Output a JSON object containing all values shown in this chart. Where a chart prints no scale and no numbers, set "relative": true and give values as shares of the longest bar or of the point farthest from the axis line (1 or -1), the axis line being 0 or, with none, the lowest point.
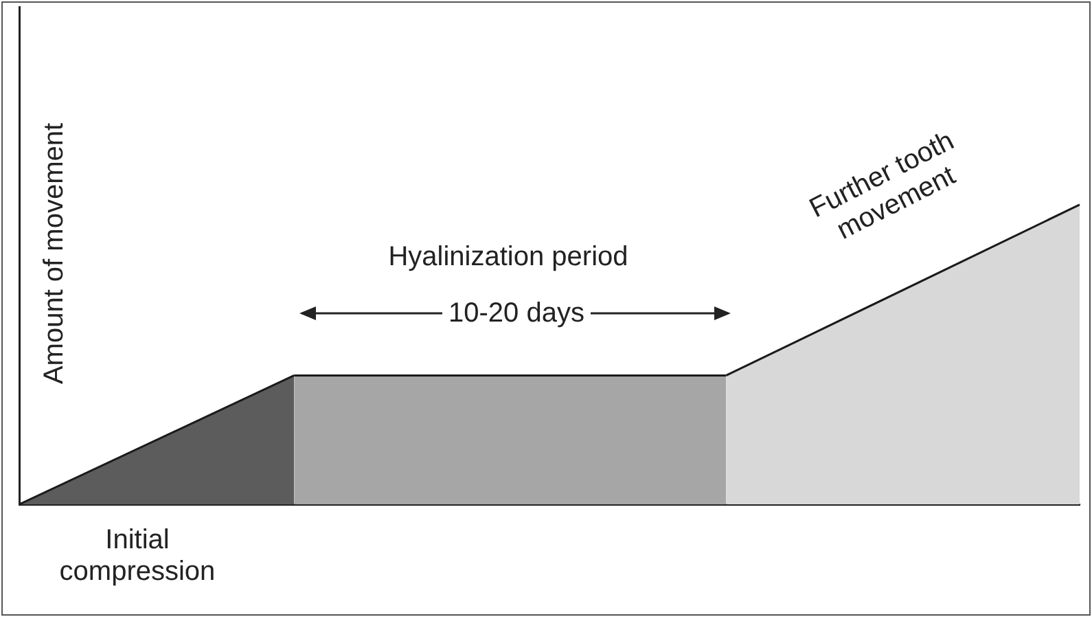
{
  "chart_data": {
    "type": "area",
    "relative": true,
    "ylabel": "Amount of movement",
    "legend": false,
    "grid": false,
    "categories": [
      null,
      null,
      null,
      null,
      null,
      null,
      null,
      null,
      null,
      null,
      null,
      null,
      null,
      null,
      null,
      null,
      null,
      null,
      null,
      null,
      null,
      null,
      null,
      null,
      null,
      null,
      null,
      null
    ],
    "series": [
      {
        "color": "#5c5c5c",
        "values": [
          0,
          null,
          null,
          null,
          null,
          null,
          null,
          0.43,
          null,
          null,
          null,
          null,
          null,
          null,
          null,
          null,
          null,
          null,
          null,
          null,
          null,
          null,
          null,
          null,
          null,
          null,
          null,
          null
        ]
      },
      {
        "color": "#a6a6a6",
        "values": [
          null,
          null,
          null,
          null,
          null,
          null,
          null,
          0.43,
          null,
          null,
          null,
          null,
          null,
          null,
          null,
          null,
          null,
          null,
          0.43,
          null,
          null,
          null,
          null,
          null,
          null,
          null,
          null,
          null
        ]
      },
      {
        "color": "#d8d8d8",
        "values": [
          null,
          null,
          null,
          null,
          null,
          null,
          null,
          null,
          null,
          null,
          null,
          null,
          null,
          null,
          null,
          null,
          null,
          null,
          0.43,
          null,
          null,
          null,
          null,
          null,
          null,
          null,
          null,
          1
        ]
      }
    ],
    "annotations": [
      "Hyalinization period",
      "10-20 days",
      "Further tooth movement",
      "Initial compression"
    ]
  }
}
